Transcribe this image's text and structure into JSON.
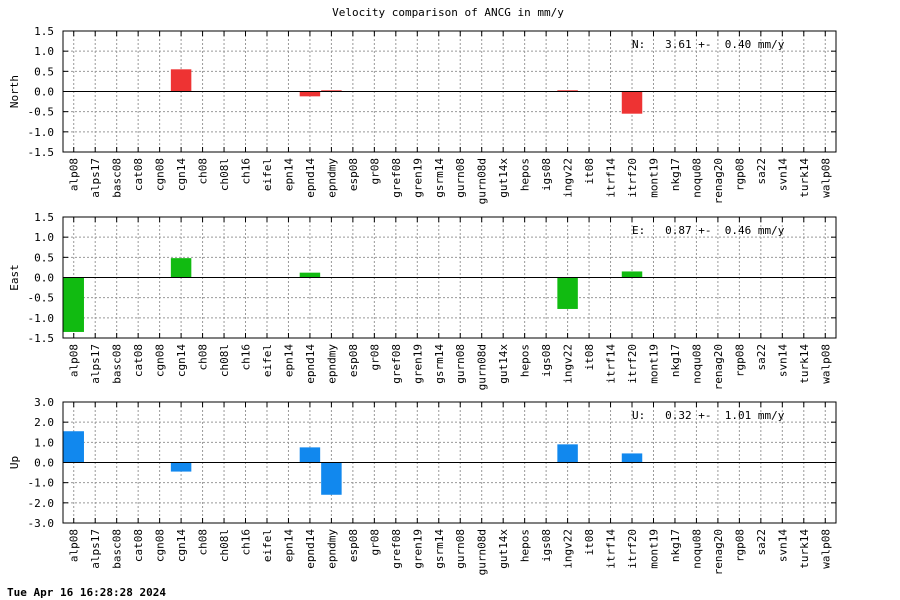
{
  "chart_title": "Velocity comparison of ANCG in mm/y",
  "timestamp": "Tue Apr 16 16:28:28 2024",
  "chart_data": {
    "type": "bar",
    "title": "Velocity comparison of ANCG in mm/y",
    "categories": [
      "alp08",
      "alps17",
      "basc08",
      "cat08",
      "cgn08",
      "cgn14",
      "ch08",
      "ch08l",
      "ch16",
      "eifel",
      "epn14",
      "epnd14",
      "epndmy",
      "esp08",
      "gr08",
      "gref08",
      "gren19",
      "gsrm14",
      "gurn08",
      "gurn08d",
      "gut14x",
      "hepos",
      "igs08",
      "ingv22",
      "it08",
      "itrf14",
      "itrf20",
      "mont19",
      "nkg17",
      "noqu08",
      "renag20",
      "rgp08",
      "sa22",
      "svn14",
      "turk14",
      "walp08"
    ],
    "panels": [
      {
        "ylabel": "North",
        "color": "#ee3333",
        "ylim": [
          -1.5,
          1.5
        ],
        "ytick_labels": [
          "1.5",
          "1.0",
          "0.5",
          "0.0",
          "-0.5",
          "-1.0",
          "-1.5"
        ],
        "ytick_values": [
          1.5,
          1.0,
          0.5,
          0.0,
          -0.5,
          -1.0,
          -1.5
        ],
        "annotation": "N:   3.61 +-  0.40 mm/y",
        "values": [
          0,
          0,
          0,
          0,
          0,
          0.55,
          0,
          0,
          0,
          0,
          0,
          -0.12,
          0.03,
          0,
          0,
          0,
          0,
          0,
          0,
          0,
          0,
          0,
          0,
          0.03,
          0,
          0,
          -0.55,
          0,
          0,
          0,
          0,
          0,
          0,
          0,
          0,
          0
        ]
      },
      {
        "ylabel": "East",
        "color": "#11bb11",
        "ylim": [
          -1.5,
          1.5
        ],
        "ytick_labels": [
          "1.5",
          "1.0",
          "0.5",
          "0.0",
          "-0.5",
          "-1.0",
          "-1.5"
        ],
        "ytick_values": [
          1.5,
          1.0,
          0.5,
          0.0,
          -0.5,
          -1.0,
          -1.5
        ],
        "annotation": "E:   0.87 +-  0.46 mm/y",
        "values": [
          -1.35,
          0,
          0,
          0,
          0,
          0.48,
          0,
          0,
          0,
          0,
          0,
          0.12,
          0,
          0,
          0,
          0,
          0,
          0,
          0,
          0,
          0,
          0,
          0,
          -0.78,
          0,
          0,
          0.15,
          0,
          0,
          0,
          0,
          0,
          0,
          0,
          0,
          0
        ]
      },
      {
        "ylabel": "Up",
        "color": "#1188ee",
        "ylim": [
          -3.0,
          3.0
        ],
        "ytick_labels": [
          "3.0",
          "2.0",
          "1.0",
          "0.0",
          "-1.0",
          "-2.0",
          "-3.0"
        ],
        "ytick_values": [
          3.0,
          2.0,
          1.0,
          0.0,
          -1.0,
          -2.0,
          -3.0
        ],
        "annotation": "U:   0.32 +-  1.01 mm/y",
        "values": [
          1.55,
          0,
          0,
          0,
          0,
          -0.45,
          0,
          0,
          0,
          0,
          0,
          0.75,
          -1.6,
          0,
          0,
          0,
          0,
          0,
          0,
          0,
          0,
          0,
          0,
          0.9,
          0,
          0,
          0.45,
          0,
          0,
          0,
          0,
          0,
          0,
          0,
          0,
          0
        ]
      }
    ]
  }
}
